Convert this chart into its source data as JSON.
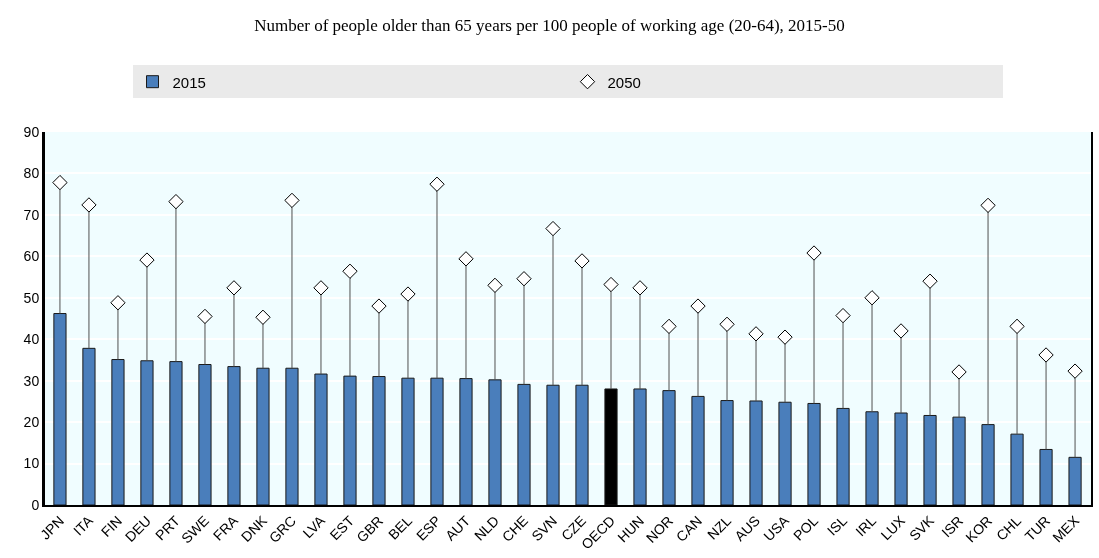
{
  "chart_data": {
    "type": "bar",
    "title": "Number of people older than 65 years per 100 people of working age (20-64), 2015-50",
    "categories": [
      "JPN",
      "ITA",
      "FIN",
      "DEU",
      "PRT",
      "SWE",
      "FRA",
      "DNK",
      "GRC",
      "LVA",
      "EST",
      "GBR",
      "BEL",
      "ESP",
      "AUT",
      "NLD",
      "CHE",
      "SVN",
      "CZE",
      "OECD",
      "HUN",
      "NOR",
      "CAN",
      "NZL",
      "AUS",
      "USA",
      "POL",
      "ISL",
      "IRL",
      "LUX",
      "SVK",
      "ISR",
      "KOR",
      "CHL",
      "TUR",
      "MEX"
    ],
    "series": [
      {
        "name": "2015",
        "color": "#4a7ebb",
        "colors": [
          "#4a7ebb",
          "#4a7ebb",
          "#4a7ebb",
          "#4a7ebb",
          "#4a7ebb",
          "#4a7ebb",
          "#4a7ebb",
          "#4a7ebb",
          "#4a7ebb",
          "#4a7ebb",
          "#4a7ebb",
          "#4a7ebb",
          "#4a7ebb",
          "#4a7ebb",
          "#4a7ebb",
          "#4a7ebb",
          "#4a7ebb",
          "#4a7ebb",
          "#4a7ebb",
          "#000000",
          "#4a7ebb",
          "#4a7ebb",
          "#4a7ebb",
          "#4a7ebb",
          "#4a7ebb",
          "#4a7ebb",
          "#4a7ebb",
          "#4a7ebb",
          "#4a7ebb",
          "#4a7ebb",
          "#4a7ebb",
          "#4a7ebb",
          "#4a7ebb",
          "#4a7ebb",
          "#4a7ebb",
          "#4a7ebb"
        ],
        "values": [
          46.2,
          37.8,
          35.1,
          34.8,
          34.6,
          33.9,
          33.4,
          33.0,
          33.0,
          31.6,
          31.1,
          31.0,
          30.6,
          30.6,
          30.5,
          30.2,
          29.1,
          28.9,
          28.9,
          28.0,
          28.0,
          27.6,
          26.2,
          25.2,
          25.1,
          24.8,
          24.5,
          23.3,
          22.5,
          22.2,
          21.6,
          21.2,
          19.4,
          17.1,
          13.4,
          11.5
        ]
      },
      {
        "name": "2050",
        "type": "scatter",
        "marker": "diamond",
        "color": "#ffffff",
        "values": [
          77.8,
          72.4,
          48.8,
          59.1,
          73.2,
          45.5,
          52.4,
          45.3,
          73.5,
          52.4,
          56.4,
          48.0,
          50.9,
          77.4,
          59.4,
          53.0,
          54.6,
          66.7,
          58.9,
          53.2,
          52.4,
          43.1,
          48.0,
          43.6,
          41.3,
          40.5,
          60.8,
          45.7,
          50.0,
          42.0,
          54.0,
          32.1,
          72.3,
          43.1,
          36.2,
          32.3
        ],
        "errors": [
          [
            46.2,
            77.8
          ],
          [
            37.8,
            72.4
          ],
          [
            35.1,
            48.8
          ],
          [
            34.8,
            59.1
          ],
          [
            34.6,
            73.2
          ],
          [
            33.9,
            45.5
          ],
          [
            33.4,
            52.4
          ],
          [
            33.0,
            45.3
          ],
          [
            33.0,
            73.5
          ],
          [
            31.6,
            52.4
          ],
          [
            31.1,
            56.4
          ],
          [
            31.0,
            48.0
          ],
          [
            30.6,
            50.9
          ],
          [
            30.6,
            77.4
          ],
          [
            30.5,
            59.4
          ],
          [
            30.2,
            53.0
          ],
          [
            29.1,
            54.6
          ],
          [
            28.9,
            66.7
          ],
          [
            28.9,
            58.9
          ],
          [
            28.0,
            53.2
          ],
          [
            28.0,
            52.4
          ],
          [
            27.6,
            43.1
          ],
          [
            26.2,
            48.0
          ],
          [
            25.2,
            43.6
          ],
          [
            25.1,
            41.3
          ],
          [
            24.8,
            40.5
          ],
          [
            24.5,
            60.8
          ],
          [
            23.3,
            45.7
          ],
          [
            22.5,
            50.0
          ],
          [
            22.2,
            42.0
          ],
          [
            21.6,
            54.0
          ],
          [
            21.2,
            32.1
          ],
          [
            19.4,
            72.3
          ],
          [
            17.1,
            43.1
          ],
          [
            13.4,
            36.2
          ],
          [
            11.5,
            32.3
          ]
        ]
      }
    ],
    "ylim": [
      0,
      90
    ],
    "yticks": [
      0,
      10,
      20,
      30,
      40,
      50,
      60,
      70,
      80,
      90
    ],
    "grid": "y",
    "legend": "top"
  }
}
